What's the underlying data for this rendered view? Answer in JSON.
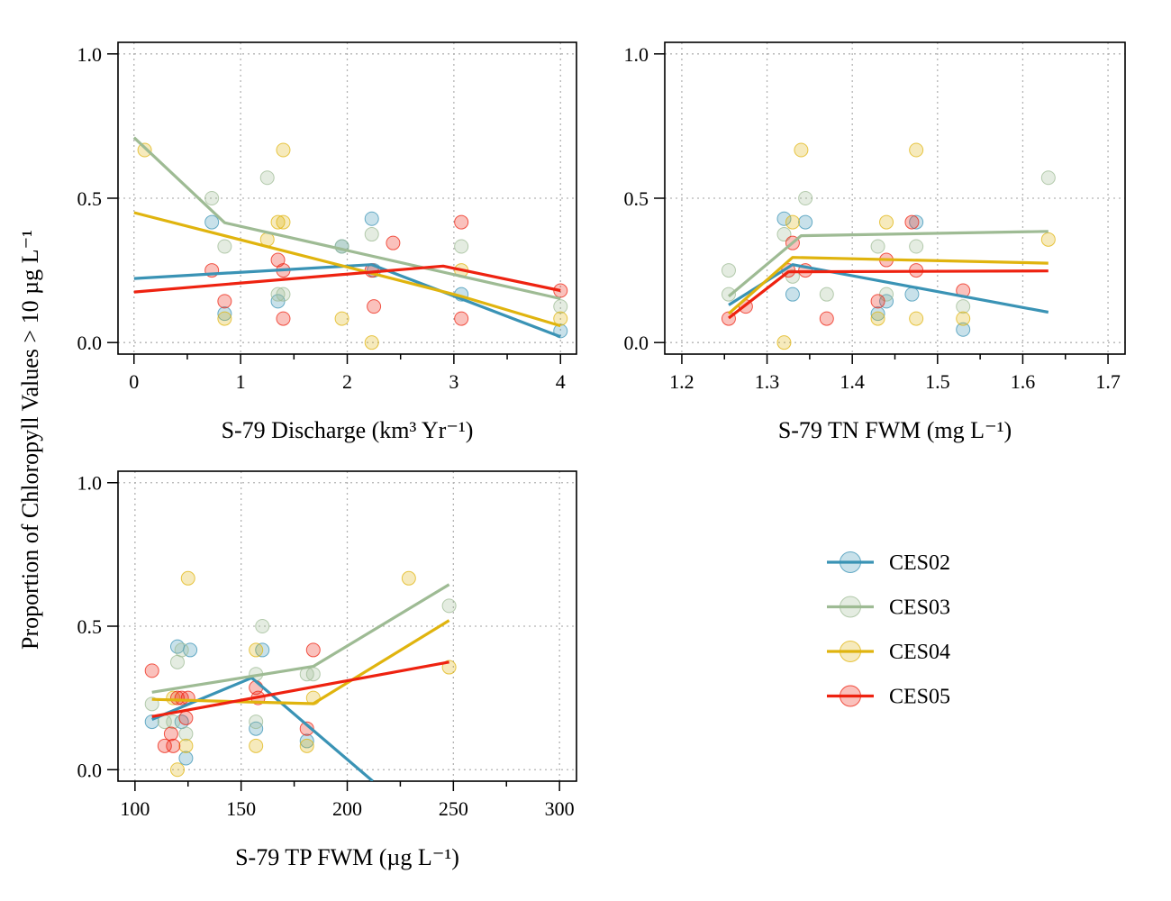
{
  "figure": {
    "ylabel": "Proportion of Chloropyll Values > 10 µg L⁻¹"
  },
  "legend": {
    "position": "right",
    "items": [
      {
        "key": "CES02",
        "label": "CES02",
        "color": "#3a93b5"
      },
      {
        "key": "CES03",
        "label": "CES03",
        "color": "#9ebb94"
      },
      {
        "key": "CES04",
        "label": "CES04",
        "color": "#e0b40e"
      },
      {
        "key": "CES05",
        "label": "CES05",
        "color": "#ee2210"
      }
    ]
  },
  "chart_data": [
    {
      "type": "scatter",
      "xlabel": "S-79 Discharge (km³ Yr⁻¹)",
      "xlim": [
        -0.15,
        4.15
      ],
      "ylim": [
        -0.04,
        1.04
      ],
      "xticks": [
        0,
        1,
        2,
        3,
        4
      ],
      "xminor": [
        0.5,
        1.5,
        2.5,
        3.5
      ],
      "yticks": [
        0.0,
        0.5,
        1.0
      ],
      "grid": true,
      "series": [
        {
          "name": "CES02",
          "points": [
            [
              0.73,
              0.417
            ],
            [
              0.85,
              0.1
            ],
            [
              1.35,
              0.143
            ],
            [
              1.95,
              0.333
            ],
            [
              2.23,
              0.429
            ],
            [
              2.25,
              0.25
            ],
            [
              3.07,
              0.167
            ],
            [
              4.0,
              0.04
            ]
          ],
          "fit": [
            [
              0.0,
              0.222
            ],
            [
              2.23,
              0.27
            ],
            [
              4.0,
              0.02
            ]
          ]
        },
        {
          "name": "CES03",
          "points": [
            [
              0.73,
              0.5
            ],
            [
              0.85,
              0.333
            ],
            [
              1.25,
              0.571
            ],
            [
              1.35,
              0.167
            ],
            [
              1.4,
              0.167
            ],
            [
              1.95,
              0.333
            ],
            [
              2.23,
              0.375
            ],
            [
              3.07,
              0.333
            ],
            [
              4.0,
              0.125
            ]
          ],
          "fit": [
            [
              0.0,
              0.71
            ],
            [
              0.85,
              0.415
            ],
            [
              4.0,
              0.152
            ]
          ]
        },
        {
          "name": "CES04",
          "points": [
            [
              0.1,
              0.667
            ],
            [
              0.85,
              0.083
            ],
            [
              1.25,
              0.357
            ],
            [
              1.35,
              0.417
            ],
            [
              1.4,
              0.667
            ],
            [
              1.4,
              0.417
            ],
            [
              1.95,
              0.083
            ],
            [
              2.23,
              0.0
            ],
            [
              3.07,
              0.25
            ],
            [
              4.0,
              0.083
            ]
          ],
          "fit": [
            [
              0.0,
              0.45
            ],
            [
              2.23,
              0.24
            ],
            [
              3.07,
              0.16
            ],
            [
              4.0,
              0.058
            ]
          ]
        },
        {
          "name": "CES05",
          "points": [
            [
              0.73,
              0.25
            ],
            [
              0.85,
              0.143
            ],
            [
              1.35,
              0.286
            ],
            [
              1.4,
              0.25
            ],
            [
              1.4,
              0.083
            ],
            [
              2.23,
              0.25
            ],
            [
              2.25,
              0.125
            ],
            [
              2.43,
              0.345
            ],
            [
              3.07,
              0.417
            ],
            [
              3.07,
              0.083
            ],
            [
              4.0,
              0.18
            ]
          ],
          "fit": [
            [
              0.0,
              0.175
            ],
            [
              2.9,
              0.265
            ],
            [
              4.0,
              0.18
            ]
          ]
        }
      ]
    },
    {
      "type": "scatter",
      "xlabel": "S-79 TN FWM (mg L⁻¹)",
      "xlim": [
        1.18,
        1.72
      ],
      "ylim": [
        -0.04,
        1.04
      ],
      "xticks": [
        1.2,
        1.3,
        1.4,
        1.5,
        1.6,
        1.7
      ],
      "xminor": [
        1.25,
        1.35,
        1.45,
        1.55,
        1.65
      ],
      "yticks": [
        0.0,
        0.5,
        1.0
      ],
      "grid": true,
      "series": [
        {
          "name": "CES02",
          "points": [
            [
              1.32,
              0.429
            ],
            [
              1.33,
              0.167
            ],
            [
              1.345,
              0.417
            ],
            [
              1.43,
              0.1
            ],
            [
              1.44,
              0.143
            ],
            [
              1.47,
              0.167
            ],
            [
              1.475,
              0.417
            ],
            [
              1.53,
              0.045
            ]
          ],
          "fit": [
            [
              1.255,
              0.13
            ],
            [
              1.33,
              0.27
            ],
            [
              1.63,
              0.105
            ]
          ]
        },
        {
          "name": "CES03",
          "points": [
            [
              1.255,
              0.25
            ],
            [
              1.255,
              0.167
            ],
            [
              1.32,
              0.375
            ],
            [
              1.33,
              0.229
            ],
            [
              1.345,
              0.5
            ],
            [
              1.37,
              0.167
            ],
            [
              1.43,
              0.333
            ],
            [
              1.44,
              0.167
            ],
            [
              1.475,
              0.333
            ],
            [
              1.53,
              0.125
            ],
            [
              1.63,
              0.571
            ]
          ],
          "fit": [
            [
              1.255,
              0.16
            ],
            [
              1.34,
              0.37
            ],
            [
              1.63,
              0.385
            ]
          ]
        },
        {
          "name": "CES04",
          "points": [
            [
              1.32,
              0.0
            ],
            [
              1.33,
              0.417
            ],
            [
              1.34,
              0.667
            ],
            [
              1.43,
              0.083
            ],
            [
              1.44,
              0.417
            ],
            [
              1.475,
              0.667
            ],
            [
              1.475,
              0.083
            ],
            [
              1.53,
              0.083
            ],
            [
              1.63,
              0.357
            ]
          ],
          "fit": [
            [
              1.255,
              0.1
            ],
            [
              1.33,
              0.295
            ],
            [
              1.63,
              0.275
            ]
          ]
        },
        {
          "name": "CES05",
          "points": [
            [
              1.255,
              0.083
            ],
            [
              1.275,
              0.125
            ],
            [
              1.325,
              0.25
            ],
            [
              1.33,
              0.345
            ],
            [
              1.345,
              0.25
            ],
            [
              1.37,
              0.083
            ],
            [
              1.43,
              0.143
            ],
            [
              1.44,
              0.286
            ],
            [
              1.47,
              0.417
            ],
            [
              1.475,
              0.25
            ],
            [
              1.53,
              0.18
            ]
          ],
          "fit": [
            [
              1.255,
              0.085
            ],
            [
              1.325,
              0.245
            ],
            [
              1.63,
              0.248
            ]
          ]
        }
      ]
    },
    {
      "type": "scatter",
      "xlabel": "S-79 TP FWM (µg L⁻¹)",
      "xlim": [
        92,
        308
      ],
      "ylim": [
        -0.04,
        1.04
      ],
      "xticks": [
        100,
        150,
        200,
        250,
        300
      ],
      "xminor": [
        125,
        175,
        225,
        275
      ],
      "yticks": [
        0.0,
        0.5,
        1.0
      ],
      "grid": true,
      "series": [
        {
          "name": "CES02",
          "points": [
            [
              108,
              0.167
            ],
            [
              120,
              0.429
            ],
            [
              122,
              0.167
            ],
            [
              124,
              0.04
            ],
            [
              126,
              0.417
            ],
            [
              157,
              0.143
            ],
            [
              160,
              0.417
            ],
            [
              181,
              0.1
            ]
          ],
          "fit": [
            [
              108,
              0.175
            ],
            [
              155,
              0.32
            ],
            [
              212,
              -0.04
            ]
          ]
        },
        {
          "name": "CES03",
          "points": [
            [
              108,
              0.229
            ],
            [
              114,
              0.167
            ],
            [
              118,
              0.167
            ],
            [
              120,
              0.375
            ],
            [
              122,
              0.417
            ],
            [
              124,
              0.125
            ],
            [
              157,
              0.167
            ],
            [
              157,
              0.333
            ],
            [
              160,
              0.5
            ],
            [
              181,
              0.333
            ],
            [
              184,
              0.333
            ],
            [
              248,
              0.571
            ]
          ],
          "fit": [
            [
              108,
              0.27
            ],
            [
              184,
              0.36
            ],
            [
              248,
              0.645
            ]
          ]
        },
        {
          "name": "CES04",
          "points": [
            [
              118,
              0.25
            ],
            [
              120,
              0.0
            ],
            [
              124,
              0.083
            ],
            [
              125,
              0.667
            ],
            [
              157,
              0.083
            ],
            [
              157,
              0.417
            ],
            [
              181,
              0.083
            ],
            [
              184,
              0.25
            ],
            [
              229,
              0.667
            ],
            [
              248,
              0.357
            ]
          ],
          "fit": [
            [
              108,
              0.245
            ],
            [
              184,
              0.23
            ],
            [
              248,
              0.52
            ]
          ]
        },
        {
          "name": "CES05",
          "points": [
            [
              108,
              0.345
            ],
            [
              114,
              0.083
            ],
            [
              117,
              0.125
            ],
            [
              118,
              0.083
            ],
            [
              120,
              0.25
            ],
            [
              122,
              0.25
            ],
            [
              124,
              0.18
            ],
            [
              125,
              0.25
            ],
            [
              157,
              0.286
            ],
            [
              158,
              0.25
            ],
            [
              181,
              0.143
            ],
            [
              184,
              0.417
            ]
          ],
          "fit": [
            [
              108,
              0.185
            ],
            [
              248,
              0.375
            ]
          ]
        }
      ]
    }
  ]
}
